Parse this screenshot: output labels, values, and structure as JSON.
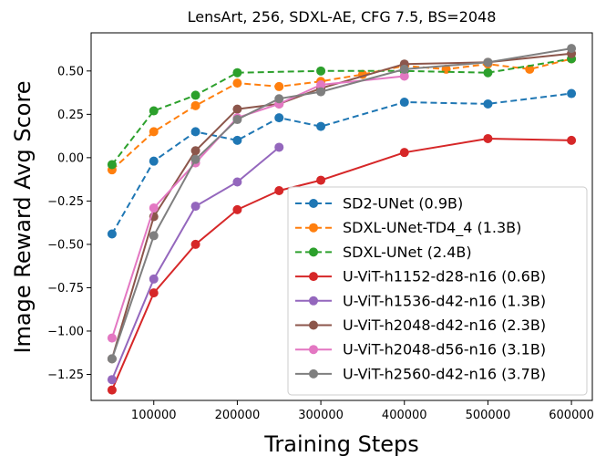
{
  "chart_data": {
    "type": "line",
    "title": "LensArt, 256, SDXL-AE, CFG 7.5, BS=2048",
    "xlabel": "Training Steps",
    "ylabel": "Image Reward Avg Score",
    "xlim": [
      25000,
      625000
    ],
    "ylim": [
      -1.4,
      0.72
    ],
    "xticks": [
      100000,
      200000,
      300000,
      400000,
      500000,
      600000
    ],
    "yticks": [
      -1.25,
      -1.0,
      -0.75,
      -0.5,
      -0.25,
      0.0,
      0.25,
      0.5
    ],
    "xtick_labels": [
      "100000",
      "200000",
      "300000",
      "400000",
      "500000",
      "600000"
    ],
    "ytick_labels": [
      "−1.25",
      "−1.00",
      "−0.75",
      "−0.50",
      "−0.25",
      "0.00",
      "0.25",
      "0.50"
    ],
    "legend_position": "lower-right",
    "series": [
      {
        "name": "SD2-UNet (0.9B)",
        "color": "#1f77b4",
        "dashed": true,
        "x": [
          50000,
          100000,
          150000,
          200000,
          250000,
          300000,
          400000,
          500000,
          600000
        ],
        "y": [
          -0.44,
          -0.02,
          0.15,
          0.1,
          0.23,
          0.18,
          0.32,
          0.31,
          0.37
        ]
      },
      {
        "name": "SDXL-UNet-TD4_4 (1.3B)",
        "color": "#ff7f0e",
        "dashed": true,
        "x": [
          50000,
          100000,
          150000,
          200000,
          250000,
          300000,
          350000,
          400000,
          450000,
          500000,
          550000,
          600000
        ],
        "y": [
          -0.07,
          0.15,
          0.3,
          0.43,
          0.41,
          0.44,
          0.48,
          0.53,
          0.51,
          0.54,
          0.51,
          0.57
        ]
      },
      {
        "name": "SDXL-UNet (2.4B)",
        "color": "#2ca02c",
        "dashed": true,
        "x": [
          50000,
          100000,
          150000,
          200000,
          300000,
          400000,
          500000,
          600000
        ],
        "y": [
          -0.04,
          0.27,
          0.36,
          0.49,
          0.5,
          0.5,
          0.49,
          0.57
        ]
      },
      {
        "name": "U-ViT-h1152-d28-n16 (0.6B)",
        "color": "#d62728",
        "dashed": false,
        "x": [
          50000,
          100000,
          150000,
          200000,
          250000,
          300000,
          400000,
          500000,
          600000
        ],
        "y": [
          -1.34,
          -0.78,
          -0.5,
          -0.3,
          -0.19,
          -0.13,
          0.03,
          0.11,
          0.1
        ]
      },
      {
        "name": "U-ViT-h1536-d42-n16 (1.3B)",
        "color": "#9467bd",
        "dashed": false,
        "x": [
          50000,
          100000,
          150000,
          200000,
          250000
        ],
        "y": [
          -1.28,
          -0.7,
          -0.28,
          -0.14,
          0.06
        ]
      },
      {
        "name": "U-ViT-h2048-d42-n16 (2.3B)",
        "color": "#8c564b",
        "dashed": false,
        "x": [
          50000,
          100000,
          150000,
          200000,
          250000,
          300000,
          400000,
          500000,
          600000
        ],
        "y": [
          -1.16,
          -0.34,
          0.04,
          0.28,
          0.31,
          0.4,
          0.54,
          0.55,
          0.6
        ]
      },
      {
        "name": "U-ViT-h2048-d56-n16 (3.1B)",
        "color": "#e377c2",
        "dashed": false,
        "x": [
          50000,
          100000,
          150000,
          200000,
          250000,
          300000,
          400000
        ],
        "y": [
          -1.04,
          -0.29,
          -0.03,
          0.23,
          0.31,
          0.42,
          0.47
        ]
      },
      {
        "name": "U-ViT-h2560-d42-n16 (3.7B)",
        "color": "#7f7f7f",
        "dashed": false,
        "x": [
          50000,
          100000,
          150000,
          200000,
          250000,
          300000,
          400000,
          500000,
          600000
        ],
        "y": [
          -1.16,
          -0.45,
          -0.01,
          0.22,
          0.34,
          0.38,
          0.51,
          0.55,
          0.63
        ]
      }
    ]
  }
}
